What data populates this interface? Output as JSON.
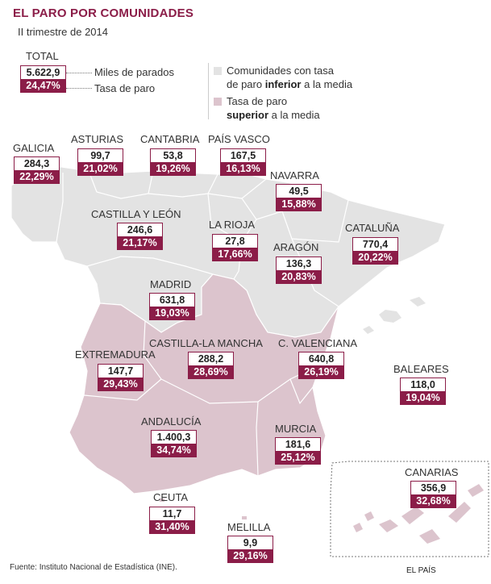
{
  "title": "EL PARO POR COMUNIDADES",
  "subtitle": "II trimestre de 2014",
  "total": {
    "label": "TOTAL",
    "value": "5.622,9",
    "rate": "24,47%"
  },
  "key": {
    "value_label": "Miles de parados",
    "rate_label": "Tasa de paro"
  },
  "legend": {
    "inferior": {
      "pre": "Comunidades con tasa",
      "mid": "de paro ",
      "bold": "inferior",
      "post": " a la media",
      "color": "#e3e3e3"
    },
    "superior": {
      "pre": "Tasa de paro",
      "bold": "superior",
      "post": " a la media",
      "color": "#dcc4cd"
    }
  },
  "colors": {
    "accent": "#8b1d48",
    "below": "#e3e3e3",
    "above": "#dcc4cd"
  },
  "regions": [
    {
      "name": "Galicia",
      "value": "284,3",
      "rate": "22,29%",
      "group": "inferior"
    },
    {
      "name": "Asturias",
      "value": "99,7",
      "rate": "21,02%",
      "group": "inferior"
    },
    {
      "name": "Cantabria",
      "value": "53,8",
      "rate": "19,26%",
      "group": "inferior"
    },
    {
      "name": "País Vasco",
      "value": "167,5",
      "rate": "16,13%",
      "group": "inferior"
    },
    {
      "name": "Navarra",
      "value": "49,5",
      "rate": "15,88%",
      "group": "inferior"
    },
    {
      "name": "Castilla y León",
      "value": "246,6",
      "rate": "21,17%",
      "group": "inferior"
    },
    {
      "name": "La Rioja",
      "value": "27,8",
      "rate": "17,66%",
      "group": "inferior"
    },
    {
      "name": "Cataluña",
      "value": "770,4",
      "rate": "20,22%",
      "group": "inferior"
    },
    {
      "name": "Aragón",
      "value": "136,3",
      "rate": "20,83%",
      "group": "inferior"
    },
    {
      "name": "Madrid",
      "value": "631,8",
      "rate": "19,03%",
      "group": "inferior"
    },
    {
      "name": "Extremadura",
      "value": "147,7",
      "rate": "29,43%",
      "group": "superior"
    },
    {
      "name": "Castilla-La Mancha",
      "value": "288,2",
      "rate": "28,69%",
      "group": "superior"
    },
    {
      "name": "C. Valenciana",
      "value": "640,8",
      "rate": "26,19%",
      "group": "superior"
    },
    {
      "name": "Baleares",
      "value": "118,0",
      "rate": "19,04%",
      "group": "inferior"
    },
    {
      "name": "Andalucía",
      "value": "1.400,3",
      "rate": "34,74%",
      "group": "superior"
    },
    {
      "name": "Murcia",
      "value": "181,6",
      "rate": "25,12%",
      "group": "superior"
    },
    {
      "name": "Canarias",
      "value": "356,9",
      "rate": "32,68%",
      "group": "superior"
    },
    {
      "name": "Ceuta",
      "value": "11,7",
      "rate": "31,40%",
      "group": "superior"
    },
    {
      "name": "Melilla",
      "value": "9,9",
      "rate": "29,16%",
      "group": "superior"
    }
  ],
  "source": "Fuente: Instituto Nacional de Estadística (INE).",
  "brand": "EL PAÍS"
}
